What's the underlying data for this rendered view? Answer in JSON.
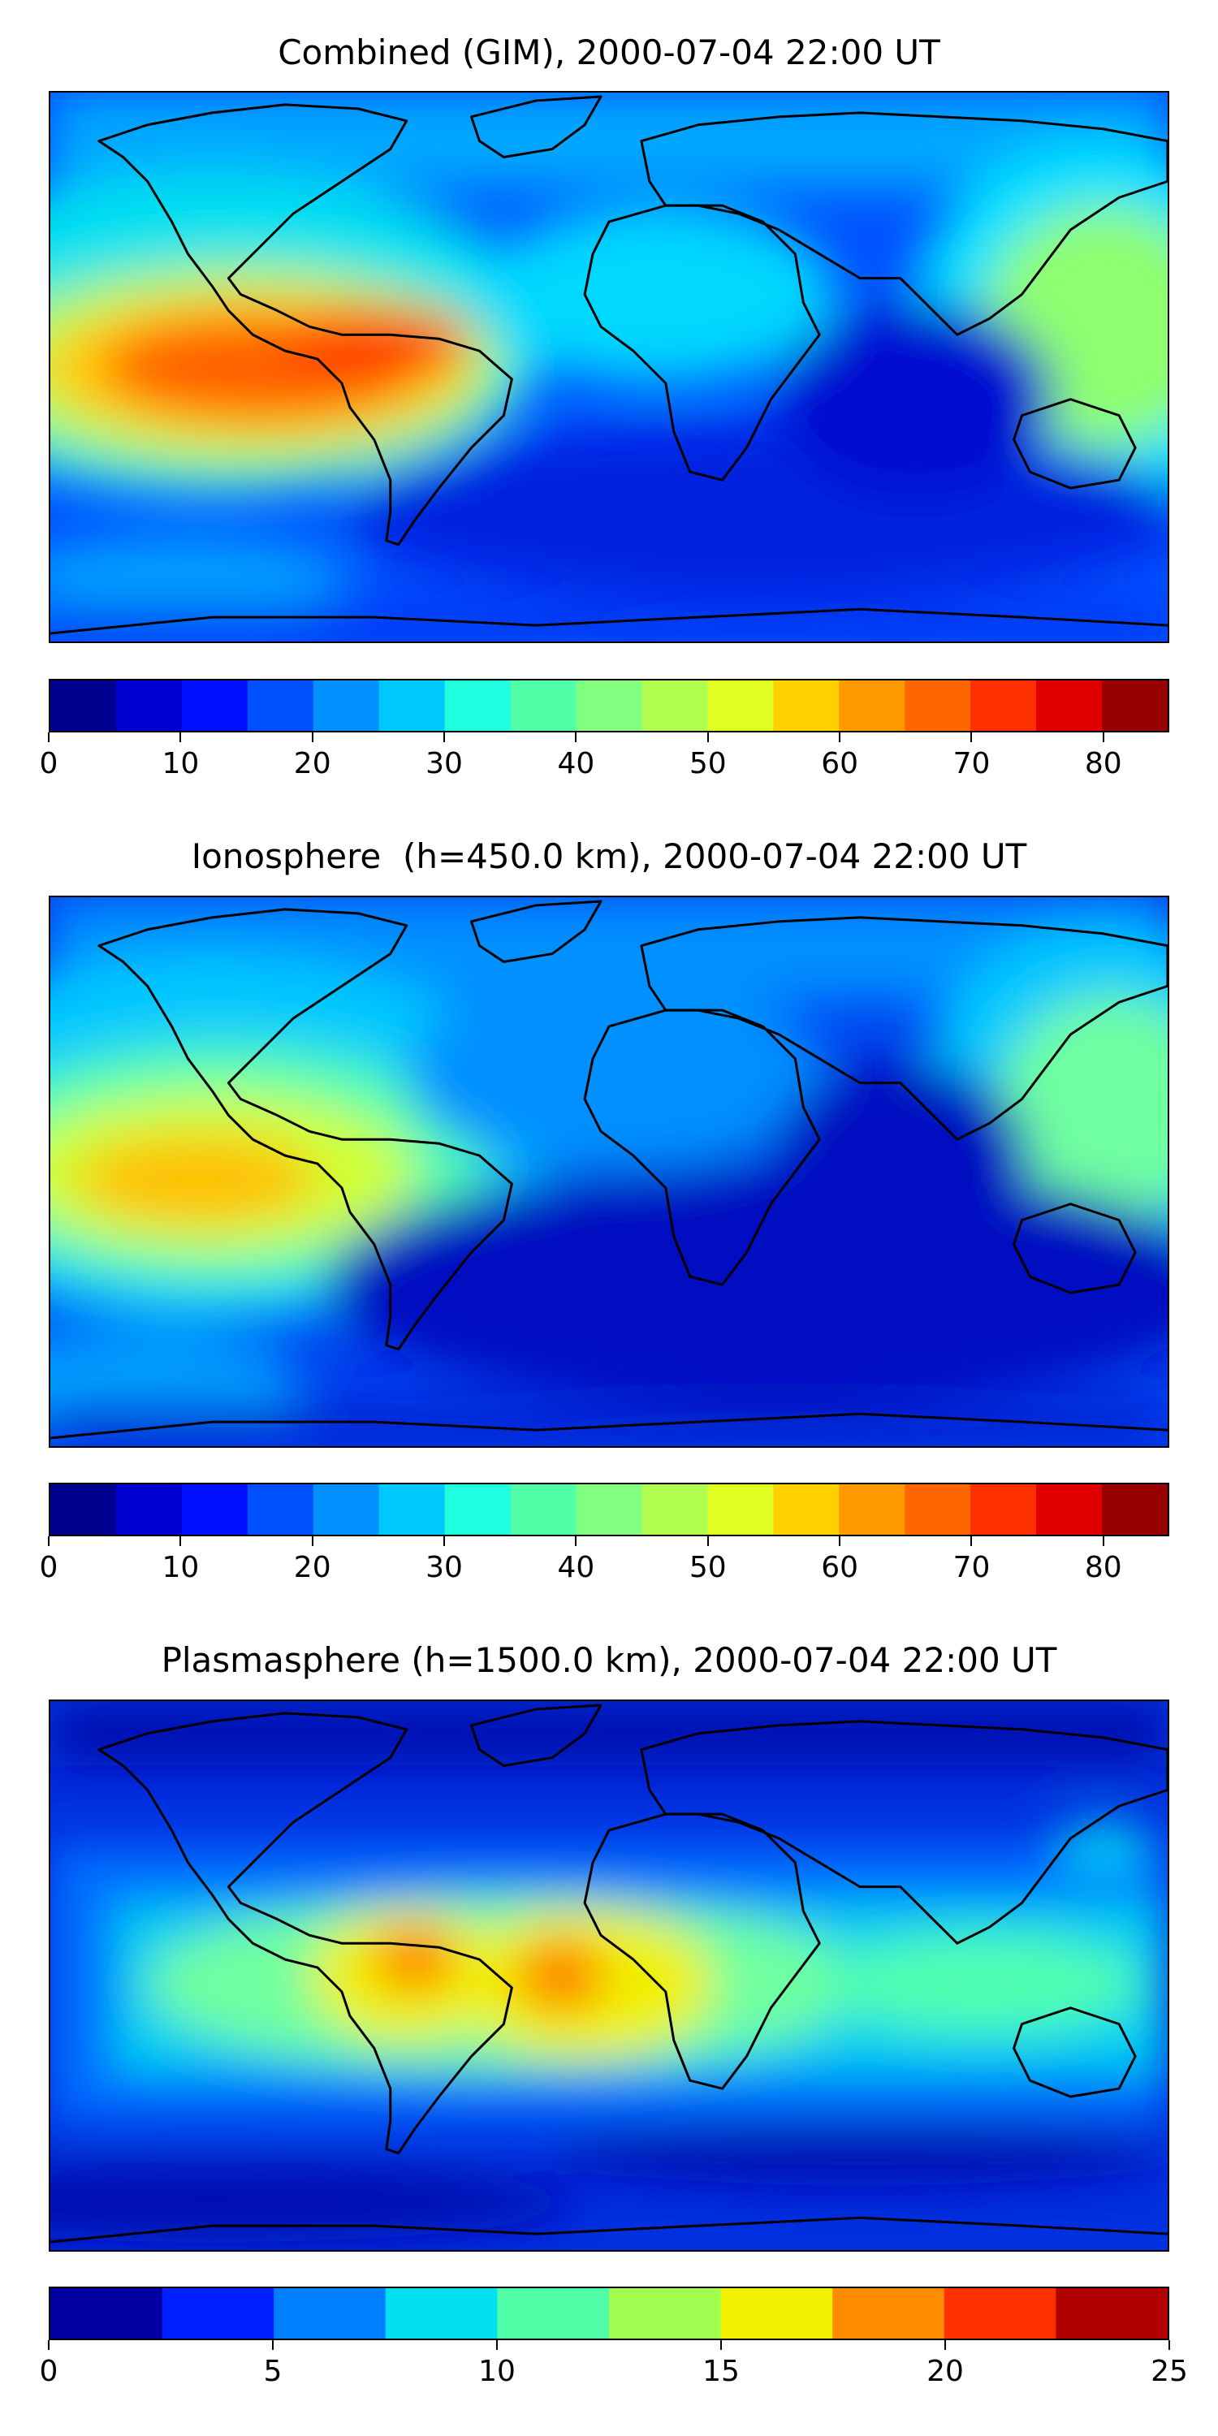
{
  "panels": [
    {
      "title": "Combined (GIM), 2000-07-04 22:00 UT",
      "colorbar_ticks": [
        "0",
        "10",
        "20",
        "30",
        "40",
        "50",
        "60",
        "70",
        "80"
      ]
    },
    {
      "title": "Ionosphere  (h=450.0 km), 2000-07-04 22:00 UT",
      "colorbar_ticks": [
        "0",
        "10",
        "20",
        "30",
        "40",
        "50",
        "60",
        "70",
        "80"
      ]
    },
    {
      "title": "Plasmasphere (h=1500.0 km), 2000-07-04 22:00 UT",
      "colorbar_ticks": [
        "0",
        "5",
        "10",
        "15",
        "20",
        "25"
      ]
    }
  ],
  "chart_data": [
    {
      "type": "heatmap",
      "title": "Combined (GIM), 2000-07-04 22:00 UT",
      "projection": "plate carree world map with coastlines",
      "colormap": "jet",
      "colorbar": {
        "min": 0,
        "max": 85,
        "step": 5,
        "ticks": [
          0,
          10,
          20,
          30,
          40,
          50,
          60,
          70,
          80
        ]
      },
      "features": [
        {
          "region": "equatorial eastern Pacific / Central America",
          "approx_value": 70
        },
        {
          "region": "tropical western Pacific / East Asia",
          "approx_value": 45
        },
        {
          "region": "Indian Ocean / southern mid-latitudes",
          "approx_value": 10
        },
        {
          "region": "Africa / Europe",
          "approx_value": 25
        }
      ]
    },
    {
      "type": "heatmap",
      "title": "Ionosphere  (h=450.0 km), 2000-07-04 22:00 UT",
      "projection": "plate carree world map with coastlines",
      "colormap": "jet",
      "colorbar": {
        "min": 0,
        "max": 85,
        "step": 5,
        "ticks": [
          0,
          10,
          20,
          30,
          40,
          50,
          60,
          70,
          80
        ]
      },
      "features": [
        {
          "region": "eastern Pacific west of South America",
          "approx_value": 60
        },
        {
          "region": "tropical western Pacific / East Asia",
          "approx_value": 40
        },
        {
          "region": "Indian Ocean",
          "approx_value": 5
        },
        {
          "region": "Africa / Europe",
          "approx_value": 20
        }
      ]
    },
    {
      "type": "heatmap",
      "title": "Plasmasphere (h=1500.0 km), 2000-07-04 22:00 UT",
      "projection": "plate carree world map with coastlines",
      "colormap": "jet",
      "colorbar": {
        "min": 0,
        "max": 25,
        "step": 2.5,
        "ticks": [
          0,
          5,
          10,
          15,
          20,
          25
        ]
      },
      "features": [
        {
          "region": "northern South America",
          "approx_value": 18
        },
        {
          "region": "equatorial Atlantic",
          "approx_value": 18
        },
        {
          "region": "equatorial belt",
          "approx_value": 11
        },
        {
          "region": "high latitudes",
          "approx_value": 3
        }
      ]
    }
  ]
}
